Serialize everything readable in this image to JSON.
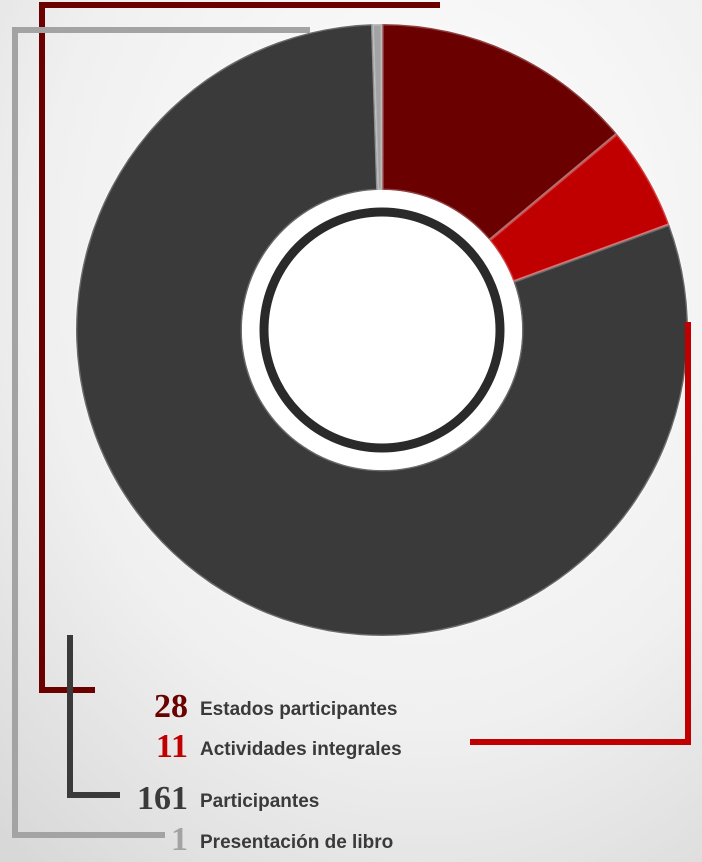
{
  "chart_data": {
    "type": "pie",
    "donut": true,
    "categories": [
      "Estados participantes",
      "Actividades integrales",
      "Participantes",
      "Presentación de libro"
    ],
    "values": [
      28,
      11,
      161,
      1
    ],
    "colors": [
      "#6b0000",
      "#c00000",
      "#3a3a3a",
      "#a3a3a3"
    ]
  }
}
